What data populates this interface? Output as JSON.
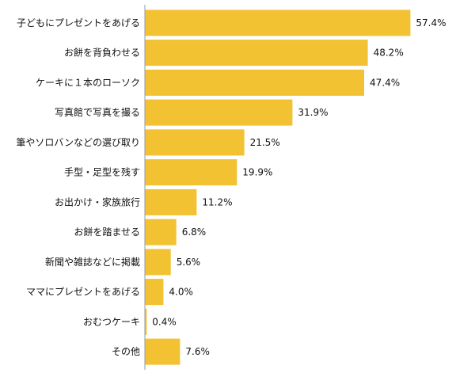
{
  "chart_data": {
    "type": "bar",
    "orientation": "horizontal",
    "title": "",
    "xlabel": "",
    "ylabel": "",
    "xlim": [
      0,
      70
    ],
    "grid": false,
    "legend": "none",
    "categories": [
      "子どもにプレゼントをあげる",
      "お餅を背負わせる",
      "ケーキに１本のローソク",
      "写真館で写真を撮る",
      "筆やソロバンなどの選び取り",
      "手型・足型を残す",
      "お出かけ・家族旅行",
      "お餅を踏ませる",
      "新聞や雑誌などに掲載",
      "ママにプレゼントをあげる",
      "おむつケーキ",
      "その他"
    ],
    "values": [
      57.4,
      48.2,
      47.4,
      31.9,
      21.5,
      19.9,
      11.2,
      6.8,
      5.6,
      4.0,
      0.4,
      7.6
    ],
    "value_labels": [
      "57.4%",
      "48.2%",
      "47.4%",
      "31.9%",
      "21.5%",
      "19.9%",
      "11.2%",
      "6.8%",
      "5.6%",
      "4.0%",
      "0.4%",
      "7.6%"
    ],
    "colors": {
      "bar": "#F2C233",
      "axis": "#999999",
      "text": "#111111"
    }
  }
}
